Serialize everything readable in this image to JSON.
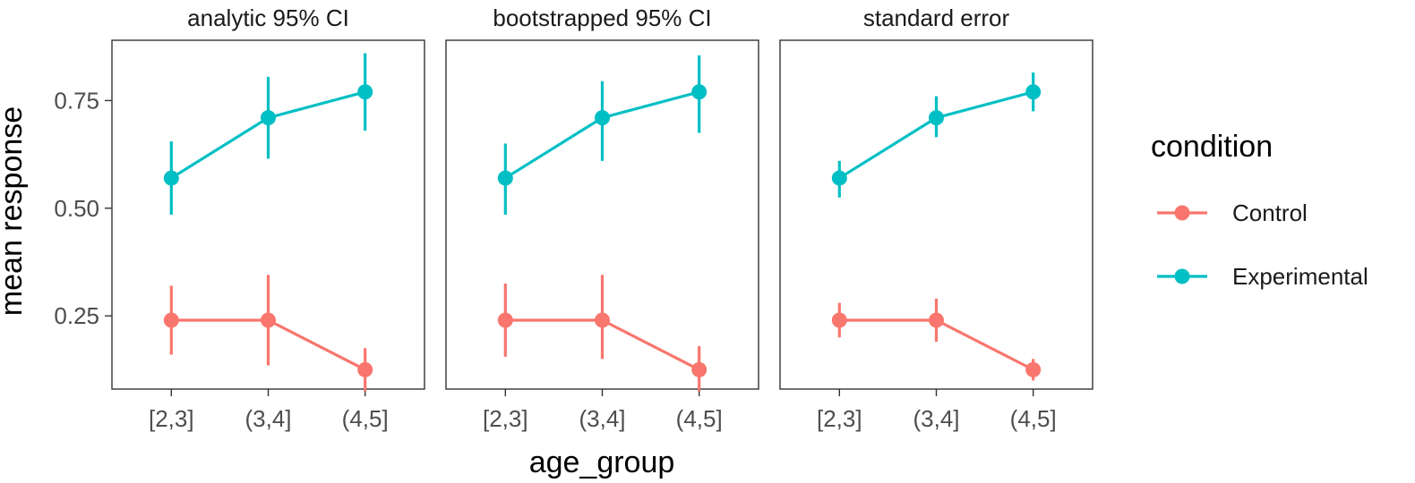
{
  "chart_data": {
    "type": "line",
    "facets": [
      "analytic 95% CI",
      "bootstrapped 95% CI",
      "standard error"
    ],
    "categories": [
      "[2,3]",
      "(3,4]",
      "(4,5]"
    ],
    "xlabel": "age_group",
    "ylabel": "mean response",
    "yticks": [
      0.25,
      0.5,
      0.75
    ],
    "ytick_labels": [
      "0.25",
      "0.50",
      "0.75"
    ],
    "ylim": [
      0.08,
      0.89
    ],
    "legend": {
      "title": "condition",
      "position": "right"
    },
    "grid": false,
    "series": [
      {
        "name": "Control",
        "color": "#F8766D",
        "values": [
          0.24,
          0.24,
          0.125
        ],
        "errors": {
          "analytic 95% CI": {
            "lower": [
              0.16,
              0.135,
              0.075
            ],
            "upper": [
              0.32,
              0.345,
              0.175
            ]
          },
          "bootstrapped 95% CI": {
            "lower": [
              0.155,
              0.15,
              0.075
            ],
            "upper": [
              0.325,
              0.345,
              0.18
            ]
          },
          "standard error": {
            "lower": [
              0.2,
              0.19,
              0.1
            ],
            "upper": [
              0.28,
              0.29,
              0.15
            ]
          }
        }
      },
      {
        "name": "Experimental",
        "color": "#00BFC4",
        "values": [
          0.57,
          0.71,
          0.77
        ],
        "errors": {
          "analytic 95% CI": {
            "lower": [
              0.485,
              0.615,
              0.68
            ],
            "upper": [
              0.655,
              0.805,
              0.86
            ]
          },
          "bootstrapped 95% CI": {
            "lower": [
              0.485,
              0.61,
              0.675
            ],
            "upper": [
              0.65,
              0.795,
              0.855
            ]
          },
          "standard error": {
            "lower": [
              0.525,
              0.665,
              0.725
            ],
            "upper": [
              0.61,
              0.76,
              0.815
            ]
          }
        }
      }
    ]
  }
}
